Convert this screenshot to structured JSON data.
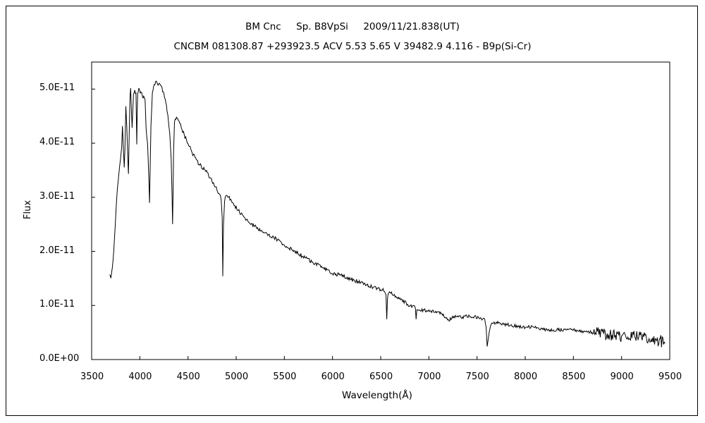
{
  "chart_data": {
    "type": "line",
    "title": "BM Cnc     Sp. B8VpSi     2009/11/21.838(UT)",
    "subtitle": "CNCBM 081308.87 +293923.5 ACV 5.53 5.65 V 39482.9 4.116 - B9p(Si-Cr)",
    "xlabel": "Wavelength(Å)",
    "ylabel": "Flux",
    "xlim": [
      3500,
      9500
    ],
    "ylim": [
      0,
      5.5e-11
    ],
    "x_ticks": [
      "3500",
      "4000",
      "4500",
      "5000",
      "5500",
      "6000",
      "6500",
      "7000",
      "7500",
      "8000",
      "8500",
      "9000",
      "9500"
    ],
    "y_ticks": [
      "0.0E+00",
      "1.0E-11",
      "2.0E-11",
      "3.0E-11",
      "4.0E-11",
      "5.0E-11"
    ],
    "y_tick_values": [
      0,
      1e-11,
      2e-11,
      3e-11,
      4e-11,
      5e-11
    ],
    "grid": false,
    "series": [
      {
        "x": [
          3685,
          3700,
          3715,
          3730,
          3745,
          3760,
          3775,
          3790,
          3800,
          3812,
          3820,
          3830,
          3838,
          3845,
          3855,
          3865,
          3875,
          3882,
          3890,
          3898,
          3905,
          3913,
          3920,
          3935,
          3948,
          3960,
          3965,
          3968,
          3972,
          3978,
          3990,
          4005,
          4020,
          4040,
          4055,
          4065,
          4080,
          4095,
          4101,
          4108,
          4115,
          4130,
          4150,
          4170,
          4190,
          4210,
          4230,
          4250,
          4270,
          4290,
          4310,
          4325,
          4335,
          4340,
          4345,
          4350,
          4360,
          4380,
          4400,
          4430,
          4460,
          4500,
          4550,
          4600,
          4650,
          4700,
          4750,
          4800,
          4830,
          4845,
          4855,
          4861,
          4868,
          4880,
          4900,
          4950,
          5000,
          5100,
          5200,
          5300,
          5400,
          5500,
          5600,
          5700,
          5800,
          5900,
          6000,
          6100,
          6200,
          6300,
          6400,
          6500,
          6540,
          6555,
          6563,
          6570,
          6585,
          6620,
          6700,
          6800,
          6860,
          6867,
          6875,
          6900,
          7000,
          7100,
          7150,
          7185,
          7200,
          7260,
          7300,
          7400,
          7500,
          7580,
          7595,
          7605,
          7620,
          7640,
          7700,
          7800,
          7900,
          8000,
          8100,
          8150,
          8200,
          8300,
          8400,
          8500,
          8600,
          8700,
          8800,
          8900,
          9000,
          9100,
          9200,
          9300,
          9400,
          9450
        ],
        "values": [
          1.6e-11,
          1.5e-11,
          1.7e-11,
          2e-11,
          2.5e-11,
          3e-11,
          3.3e-11,
          3.55e-11,
          3.7e-11,
          3.95e-11,
          4.3e-11,
          3.9e-11,
          3.55e-11,
          3.9e-11,
          4.7e-11,
          4.3e-11,
          3.7e-11,
          3.4e-11,
          4.2e-11,
          4.85e-11,
          5.05e-11,
          4.6e-11,
          4.3e-11,
          4.9e-11,
          5e-11,
          4.9e-11,
          4.3e-11,
          3.95e-11,
          4.5e-11,
          4.9e-11,
          5e-11,
          4.95e-11,
          4.9e-11,
          4.85e-11,
          4.8e-11,
          4.3e-11,
          4e-11,
          3.3e-11,
          2.9e-11,
          3.6e-11,
          4.3e-11,
          4.95e-11,
          5.1e-11,
          5.12e-11,
          5.08e-11,
          5.1e-11,
          5e-11,
          4.9e-11,
          4.75e-11,
          4.5e-11,
          4.2e-11,
          3.7e-11,
          3e-11,
          2.5e-11,
          3.1e-11,
          3.8e-11,
          4.4e-11,
          4.5e-11,
          4.45e-11,
          4.3e-11,
          4.15e-11,
          4e-11,
          3.8e-11,
          3.65e-11,
          3.55e-11,
          3.45e-11,
          3.3e-11,
          3.15e-11,
          3.05e-11,
          2.95e-11,
          2.6e-11,
          1.55e-11,
          2.5e-11,
          2.95e-11,
          3.05e-11,
          2.95e-11,
          2.8e-11,
          2.6e-11,
          2.45e-11,
          2.35e-11,
          2.25e-11,
          2.12e-11,
          2e-11,
          1.9e-11,
          1.8e-11,
          1.7e-11,
          1.6e-11,
          1.55e-11,
          1.48e-11,
          1.42e-11,
          1.35e-11,
          1.3e-11,
          1.28e-11,
          1.2e-11,
          7.2e-12,
          1.15e-11,
          1.25e-11,
          1.22e-11,
          1.12e-11,
          1e-11,
          9.8e-12,
          7.2e-12,
          9e-12,
          9.2e-12,
          9e-12,
          8.8e-12,
          8.2e-12,
          7.5e-12,
          7.2e-12,
          8e-12,
          7.8e-12,
          8e-12,
          7.8e-12,
          7.5e-12,
          6e-12,
          2.2e-12,
          4.5e-12,
          6.5e-12,
          6.8e-12,
          6.5e-12,
          6.2e-12,
          6e-12,
          6e-12,
          5.8e-12,
          5.5e-12,
          5.5e-12,
          5.5e-12,
          5.5e-12,
          5.2e-12,
          5e-12,
          4.8e-12,
          4.5e-12,
          4.2e-12,
          4.5e-12,
          4.2e-12,
          4e-12,
          3.5e-12,
          3e-12
        ]
      }
    ]
  }
}
